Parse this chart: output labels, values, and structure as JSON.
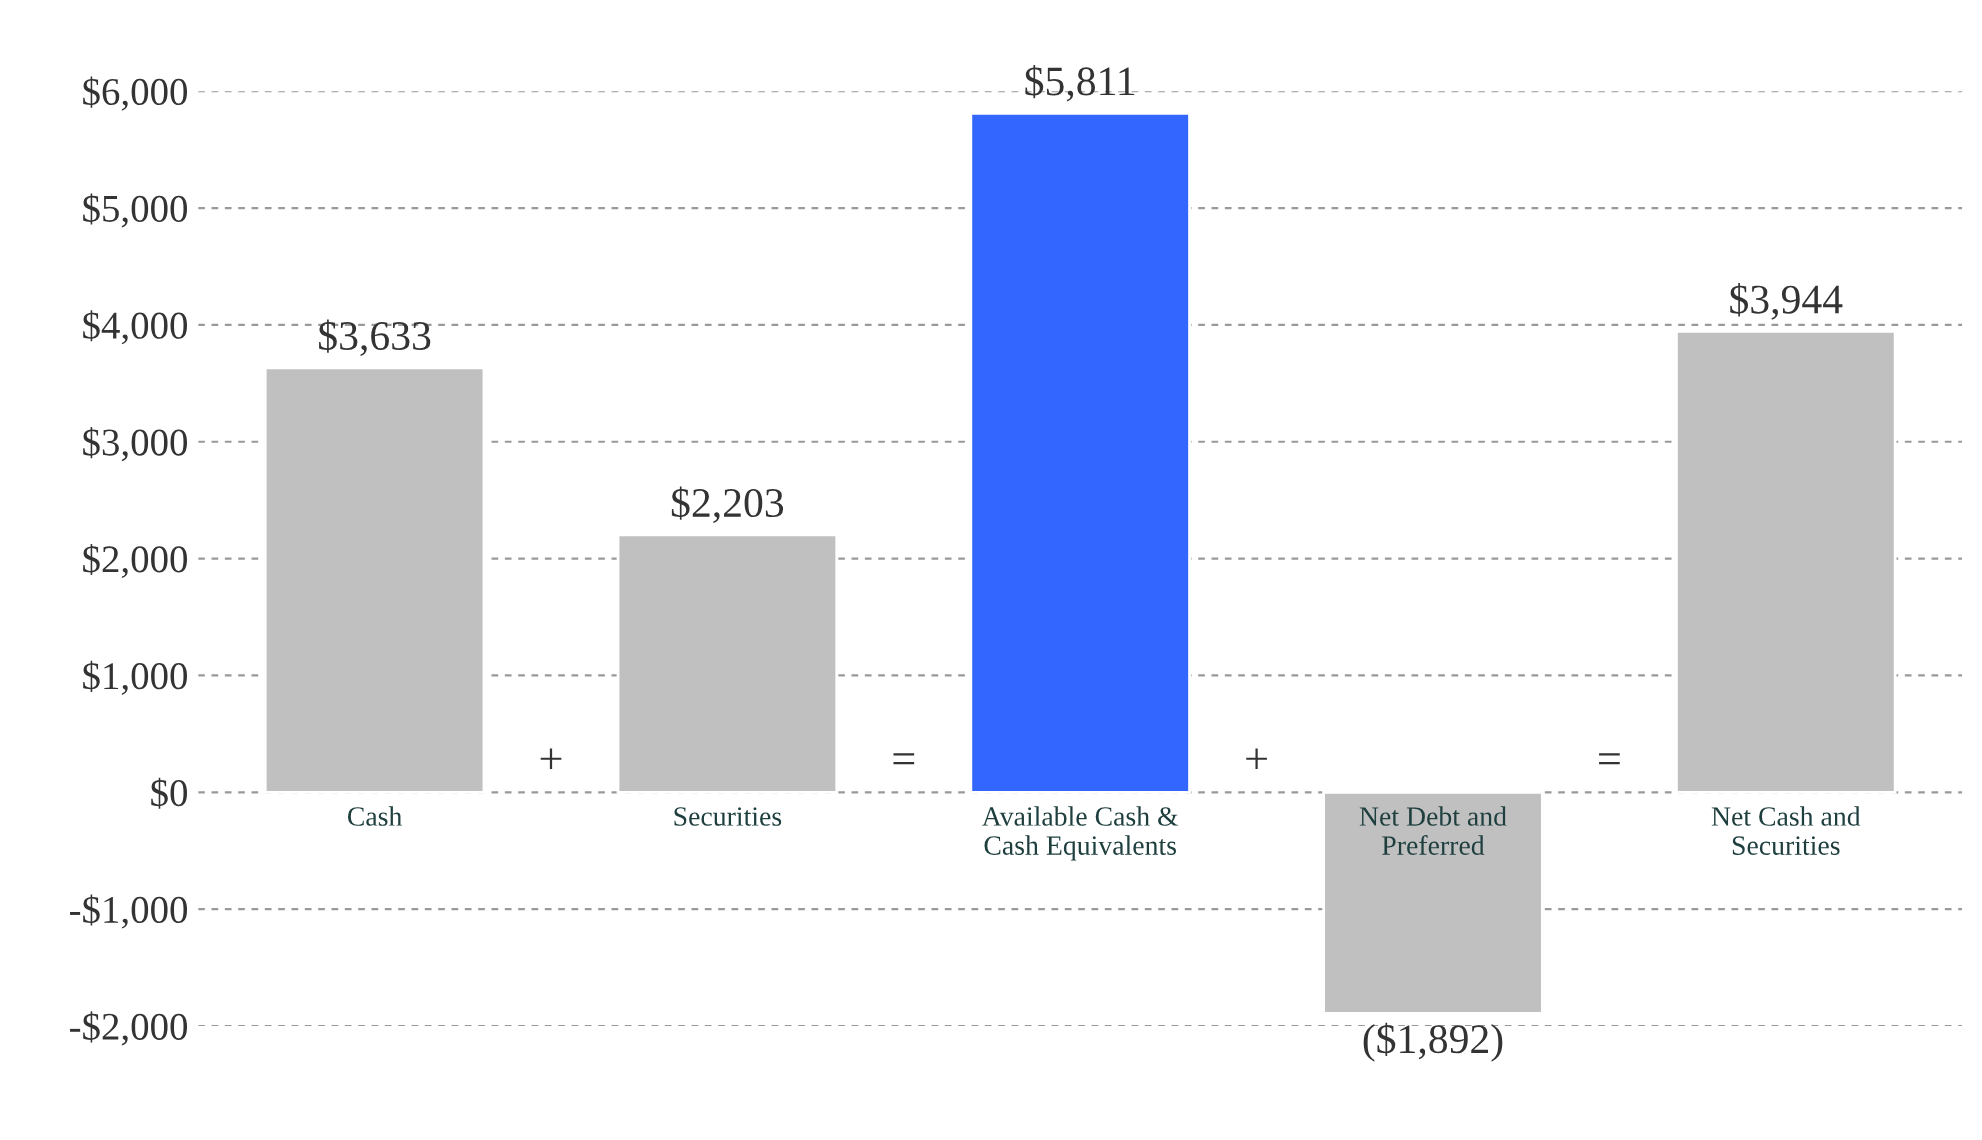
{
  "chart_data": {
    "type": "bar",
    "categories": [
      "Cash",
      "Securities",
      "Available Cash &\nCash Equivalents",
      "Net Debt and\nPreferred",
      "Net Cash and\nSecurities"
    ],
    "values": [
      3633,
      2203,
      5811,
      -1892,
      3944
    ],
    "colors": [
      "#c0c0c0",
      "#c0c0c0",
      "#3366ff",
      "#c0c0c0",
      "#c0c0c0"
    ],
    "value_labels": [
      "$3,633",
      "$2,203",
      "$5,811",
      "($1,892)",
      "$3,944"
    ],
    "annotations": [
      "+",
      "=",
      "+",
      "="
    ],
    "ylim": [
      -2000,
      6000
    ],
    "yticks": [
      {
        "value": -2000,
        "label": "-$2,000"
      },
      {
        "value": -1000,
        "label": "-$1,000"
      },
      {
        "value": 0,
        "label": "$0"
      },
      {
        "value": 1000,
        "label": "$1,000"
      },
      {
        "value": 2000,
        "label": "$2,000"
      },
      {
        "value": 3000,
        "label": "$3,000"
      },
      {
        "value": 4000,
        "label": "$4,000"
      },
      {
        "value": 5000,
        "label": "$5,000"
      },
      {
        "value": 6000,
        "label": "$6,000"
      }
    ],
    "grid": "y"
  }
}
